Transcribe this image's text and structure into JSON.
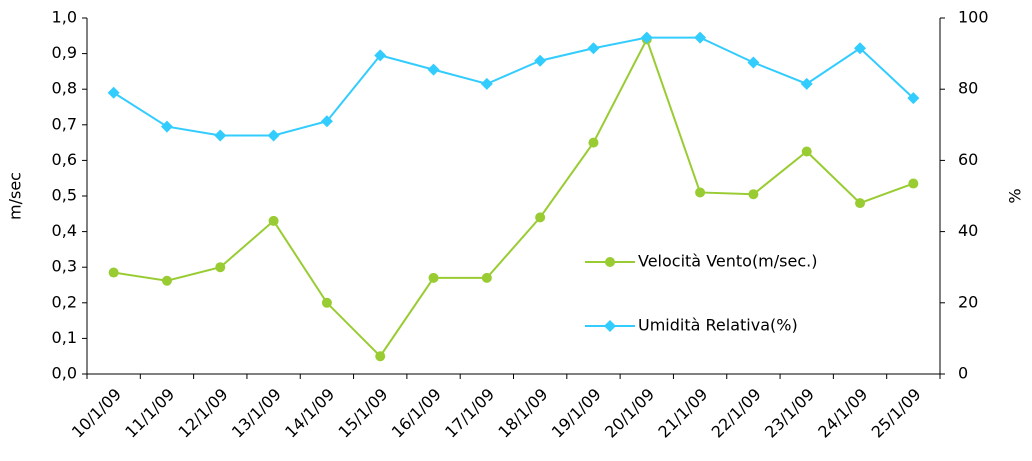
{
  "chart_data": {
    "type": "line",
    "categories": [
      "10/1/09",
      "11/1/09",
      "12/1/09",
      "13/1/09",
      "14/1/09",
      "15/1/09",
      "16/1/09",
      "17/1/09",
      "18/1/09",
      "19/1/09",
      "20/1/09",
      "21/1/09",
      "22/1/09",
      "23/1/09",
      "24/1/09",
      "25/1/09"
    ],
    "series": [
      {
        "name": "Velocità Vento(m/sec.)",
        "color": "#99cc33",
        "marker": "circle",
        "values": [
          0.285,
          0.262,
          0.3,
          0.43,
          0.2,
          0.05,
          0.27,
          0.27,
          0.44,
          0.65,
          0.94,
          0.51,
          0.505,
          0.625,
          0.48,
          0.535
        ]
      },
      {
        "name": "Umidità Relativa(%)",
        "color": "#33ccff",
        "marker": "diamond",
        "axis": "y2",
        "values": [
          79,
          69.5,
          67,
          67,
          71,
          89.5,
          85.5,
          81.5,
          88,
          91.5,
          94.5,
          94.5,
          87.5,
          81.5,
          91.5,
          77.5
        ]
      }
    ],
    "ylabel": "m/sec",
    "y2label": "%",
    "ylim": [
      0,
      1
    ],
    "yticks": [
      {
        "value": 0,
        "label": "0,0"
      },
      {
        "value": 0.1,
        "label": "0,1"
      },
      {
        "value": 0.2,
        "label": "0,2"
      },
      {
        "value": 0.3,
        "label": "0,3"
      },
      {
        "value": 0.4,
        "label": "0,4"
      },
      {
        "value": 0.5,
        "label": "0,5"
      },
      {
        "value": 0.6,
        "label": "0,6"
      },
      {
        "value": 0.7,
        "label": "0,7"
      },
      {
        "value": 0.8,
        "label": "0,8"
      },
      {
        "value": 0.9,
        "label": "0,9"
      },
      {
        "value": 1,
        "label": "1,0"
      }
    ],
    "y2lim": [
      0,
      100
    ],
    "y2ticks": [
      0,
      20,
      40,
      60,
      80,
      100
    ],
    "grid": false,
    "legend": "inside-right"
  }
}
